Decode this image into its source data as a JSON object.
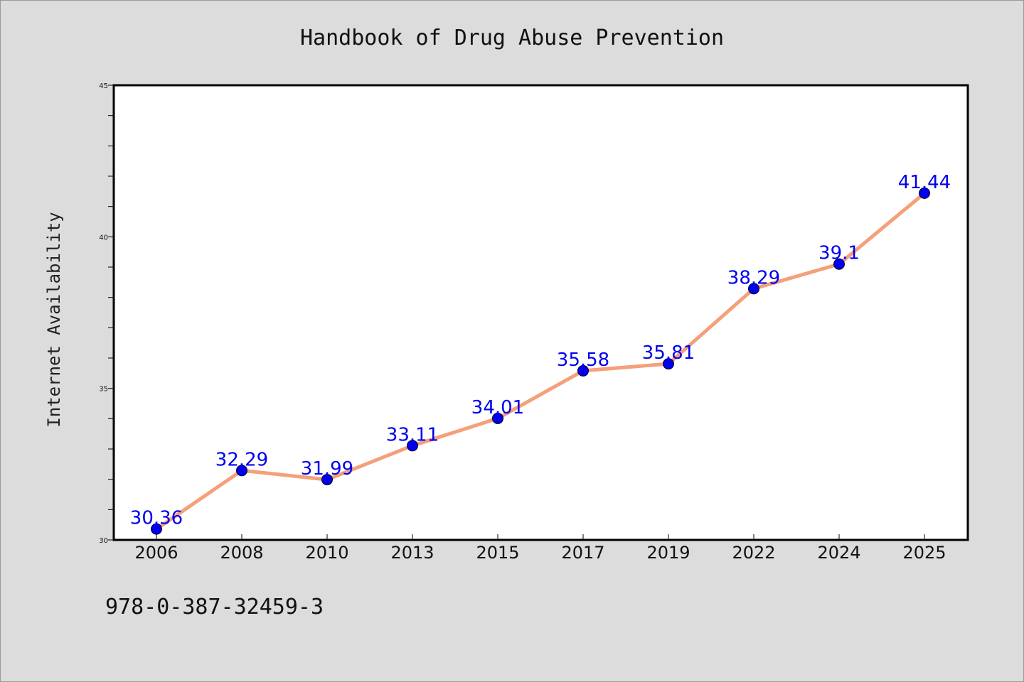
{
  "chart_data": {
    "type": "line",
    "title": "Handbook of Drug Abuse Prevention",
    "xlabel": "",
    "ylabel": "Internet Availability",
    "categories": [
      "2006",
      "2008",
      "2010",
      "2013",
      "2015",
      "2017",
      "2019",
      "2022",
      "2024",
      "2025"
    ],
    "series": [
      {
        "values": [
          30.36,
          32.29,
          31.99,
          33.11,
          34.01,
          35.58,
          35.81,
          38.29,
          39.1,
          41.44
        ],
        "labels": [
          "30.36",
          "32.29",
          "31.99",
          "33.11",
          "34.01",
          "35.58",
          "35.81",
          "38.29",
          "39.1",
          "41.44"
        ]
      }
    ],
    "ylim": [
      30,
      45
    ],
    "yticks": [
      "30",
      "35",
      "40",
      "45"
    ],
    "grid": false,
    "colors": {
      "line": "#f4a07a",
      "marker": "#0000ee",
      "label": "#0000ee"
    }
  },
  "footer": {
    "isbn": "978-0-387-32459-3"
  }
}
